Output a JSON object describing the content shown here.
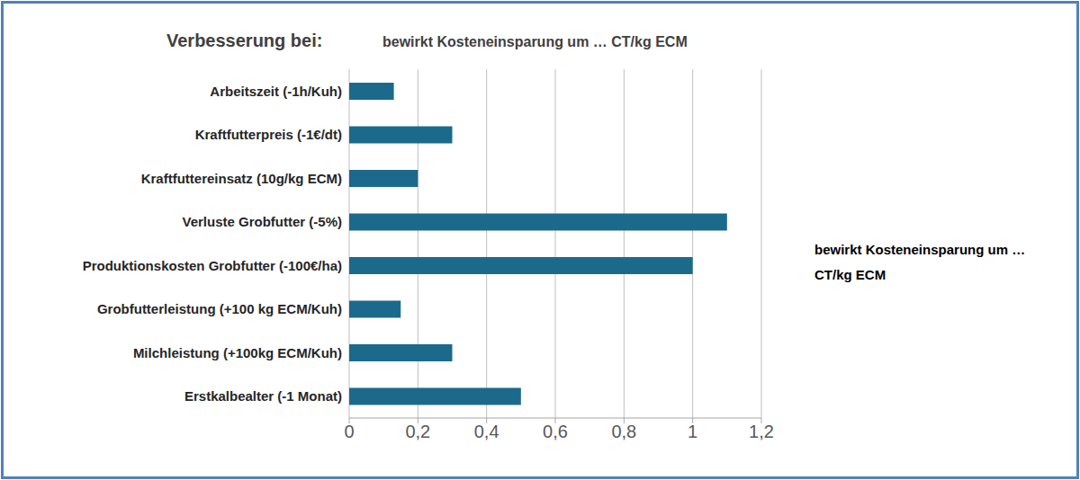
{
  "chart_data": {
    "type": "bar",
    "orientation": "horizontal",
    "title": "bewirkt Kosteneinsparung um … CT/kg ECM",
    "y_label": "Verbesserung bei:",
    "categories": [
      "Arbeitszeit (-1h/Kuh)",
      "Kraftfutterpreis (-1€/dt)",
      "Kraftfuttereinsatz (10g/kg ECM)",
      "Verluste Grobfutter (-5%)",
      "Produktionskosten Grobfutter (-100€/ha)",
      "Grobfutterleistung (+100 kg ECM/Kuh)",
      "Milchleistung (+100kg ECM/Kuh)",
      "Erstkalbealter (-1 Monat)"
    ],
    "series": [
      {
        "name": "bewirkt Kosteneinsparung um … CT/kg ECM",
        "color": "#1b6a8c",
        "values": [
          0.13,
          0.3,
          0.2,
          1.1,
          1.0,
          0.15,
          0.3,
          0.5
        ]
      }
    ],
    "xlim": [
      0,
      1.2
    ],
    "xticks": [
      0,
      {
        "value": 0.2,
        "label": "0,2"
      },
      {
        "value": 0.4,
        "label": "0,4"
      },
      {
        "value": 0.6,
        "label": "0,6"
      },
      {
        "value": 0.8,
        "label": "0,8"
      },
      1,
      {
        "value": 1.2,
        "label": "1,2"
      }
    ],
    "grid": true,
    "legend": "right"
  }
}
